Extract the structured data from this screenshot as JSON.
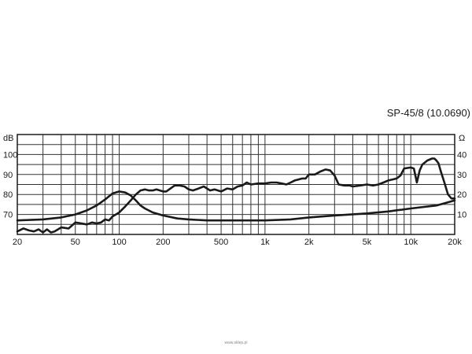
{
  "chart_data": {
    "type": "line",
    "title": "SP-45/8  (10.0690)",
    "x_scale": "log",
    "xlim": [
      20,
      20000
    ],
    "ylim": [
      60,
      110
    ],
    "y2lim": [
      0,
      50
    ],
    "grid": true,
    "left_unit": "dB",
    "right_unit": "Ω",
    "x_ticks": [
      {
        "value": 20,
        "label": "20"
      },
      {
        "value": 50,
        "label": "50"
      },
      {
        "value": 100,
        "label": "100"
      },
      {
        "value": 200,
        "label": "200"
      },
      {
        "value": 500,
        "label": "500"
      },
      {
        "value": 1000,
        "label": "1k"
      },
      {
        "value": 2000,
        "label": "2k"
      },
      {
        "value": 5000,
        "label": "5k"
      },
      {
        "value": 10000,
        "label": "10k"
      },
      {
        "value": 20000,
        "label": "20k"
      }
    ],
    "y_ticks": [
      {
        "value": 70,
        "label": "70"
      },
      {
        "value": 80,
        "label": "80"
      },
      {
        "value": 90,
        "label": "90"
      },
      {
        "value": 100,
        "label": "100"
      }
    ],
    "y2_ticks": [
      {
        "value": 10,
        "label": "10"
      },
      {
        "value": 20,
        "label": "20"
      },
      {
        "value": 30,
        "label": "30"
      },
      {
        "value": 40,
        "label": "40"
      }
    ],
    "series": [
      {
        "axis": "left",
        "x": [
          20,
          22,
          24,
          26,
          28,
          30,
          32,
          34,
          36,
          40,
          45,
          50,
          55,
          60,
          65,
          70,
          75,
          80,
          85,
          90,
          100,
          110,
          120,
          130,
          140,
          150,
          160,
          170,
          180,
          190,
          200,
          210,
          220,
          240,
          260,
          280,
          300,
          320,
          350,
          380,
          420,
          450,
          500,
          550,
          600,
          650,
          700,
          750,
          800,
          900,
          1000,
          1100,
          1200,
          1300,
          1400,
          1500,
          1600,
          1700,
          1800,
          1900,
          2000,
          2200,
          2400,
          2600,
          2800,
          3000,
          3200,
          3500,
          3800,
          4000,
          4500,
          5000,
          5500,
          6000,
          6500,
          7000,
          7500,
          8000,
          8500,
          9000,
          10000,
          10500,
          11000,
          11500,
          12000,
          13000,
          14000,
          14500,
          15000,
          15500,
          16000,
          17000,
          18000,
          19000,
          20000
        ],
        "y": [
          61.5,
          63.0,
          62.0,
          61.5,
          62.5,
          61.0,
          62.5,
          61.0,
          61.5,
          63.5,
          63.0,
          66.0,
          65.5,
          65.0,
          66.0,
          65.5,
          66.0,
          67.5,
          67.0,
          69.0,
          71.0,
          74.0,
          77.0,
          80.0,
          82.0,
          82.5,
          82.0,
          82.0,
          82.5,
          82.0,
          81.5,
          81.5,
          82.5,
          84.5,
          84.5,
          84.0,
          82.5,
          82.0,
          83.0,
          84.0,
          82.0,
          82.5,
          81.5,
          83.0,
          82.5,
          84.0,
          84.5,
          86.0,
          85.0,
          85.5,
          85.5,
          86.0,
          86.0,
          85.5,
          85.0,
          86.0,
          87.0,
          87.5,
          88.0,
          88.0,
          90.0,
          90.0,
          91.5,
          92.5,
          92.0,
          89.5,
          85.0,
          84.5,
          84.5,
          84.0,
          84.5,
          85.0,
          84.5,
          85.0,
          86.0,
          87.0,
          87.5,
          88.0,
          89.5,
          93.0,
          93.5,
          93.0,
          86.0,
          92.0,
          95.0,
          97.0,
          98.0,
          98.0,
          97.0,
          95.5,
          92.0,
          86.0,
          80.0,
          78.0,
          78.0
        ]
      },
      {
        "axis": "right",
        "x": [
          20,
          30,
          40,
          50,
          60,
          70,
          80,
          90,
          100,
          110,
          120,
          130,
          140,
          150,
          170,
          200,
          250,
          300,
          400,
          500,
          700,
          1000,
          1500,
          2000,
          3000,
          5000,
          7000,
          10000,
          15000,
          20000
        ],
        "y": [
          7.0,
          7.5,
          8.5,
          10.0,
          12.0,
          14.5,
          17.5,
          20.5,
          21.5,
          21.0,
          19.5,
          17.0,
          14.5,
          13.0,
          11.0,
          9.5,
          8.0,
          7.5,
          7.0,
          7.0,
          7.0,
          7.0,
          7.5,
          8.5,
          9.5,
          10.5,
          11.5,
          13.0,
          14.5,
          17.0
        ]
      }
    ]
  },
  "footer_text": "www.sklep.pl"
}
